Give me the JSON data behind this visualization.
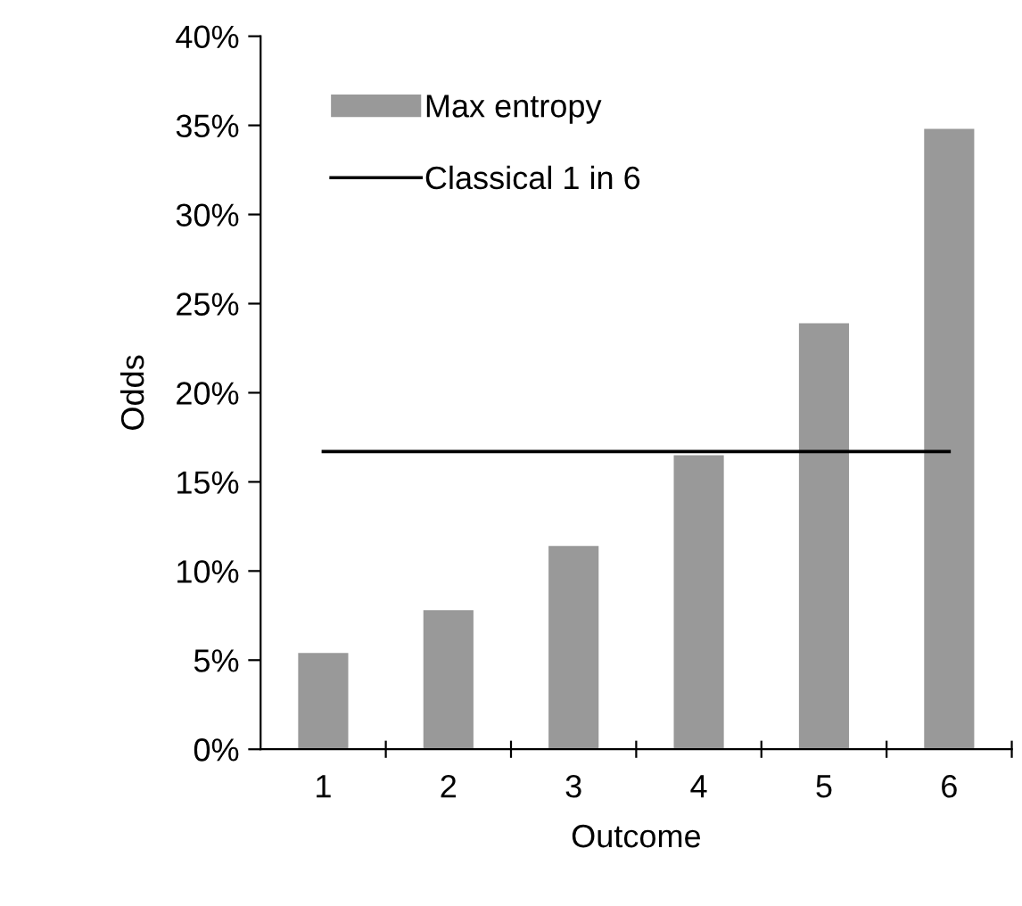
{
  "chart_data": {
    "type": "bar",
    "xlabel": "Outcome",
    "ylabel": "Odds",
    "categories": [
      "1",
      "2",
      "3",
      "4",
      "5",
      "6"
    ],
    "series": [
      {
        "name": "Max entropy",
        "color": "#999999",
        "values": [
          5.4,
          7.8,
          11.4,
          16.5,
          23.9,
          34.8
        ]
      },
      {
        "name": "Classical 1 in 6",
        "type": "line",
        "color": "#000000",
        "values": [
          16.7,
          16.7,
          16.7,
          16.7,
          16.7,
          16.7
        ]
      }
    ],
    "ylim": [
      0,
      40
    ],
    "yticks": [
      {
        "value": 0,
        "label": "0%"
      },
      {
        "value": 5,
        "label": "5%"
      },
      {
        "value": 10,
        "label": "10%"
      },
      {
        "value": 15,
        "label": "15%"
      },
      {
        "value": 20,
        "label": "20%"
      },
      {
        "value": 25,
        "label": "25%"
      },
      {
        "value": 30,
        "label": "30%"
      },
      {
        "value": 35,
        "label": "35%"
      },
      {
        "value": 40,
        "label": "40%"
      }
    ],
    "grid": false,
    "legend": "top",
    "marker": "none",
    "line_style": "solid"
  }
}
